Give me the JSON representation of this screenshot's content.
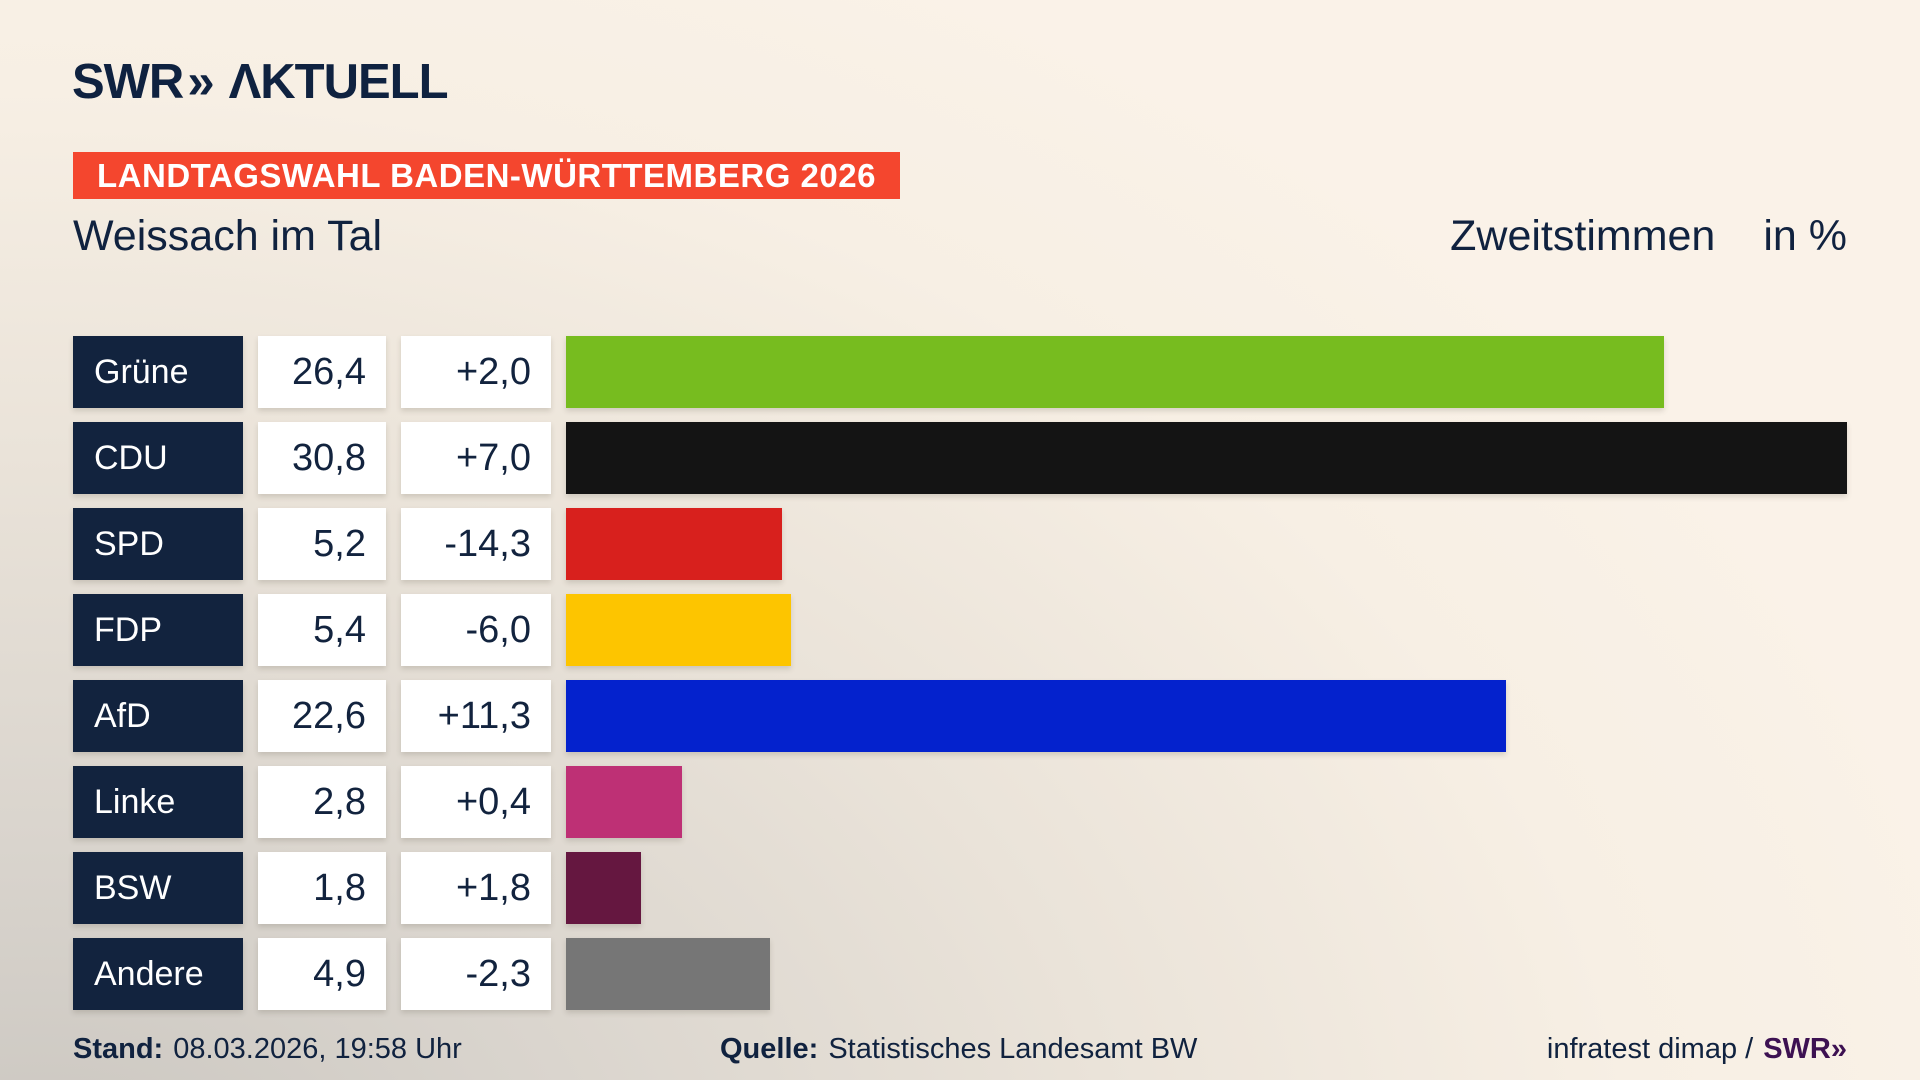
{
  "brand": {
    "name": "SWR AKTUELL",
    "swr": "SWR",
    "chevrons": "»",
    "aktuell": "ΛKTUELL"
  },
  "banner": {
    "text": "LANDTAGSWAHL BADEN-WÜRTTEMBERG 2026"
  },
  "header": {
    "municipality": "Weissach im Tal",
    "measure": "Zweitstimmen",
    "unit": "in %"
  },
  "chart_data": {
    "type": "bar",
    "orientation": "horizontal",
    "title": "Zweitstimmen in %",
    "subtitle": "Weissach im Tal",
    "categories": [
      "Grüne",
      "CDU",
      "SPD",
      "FDP",
      "AfD",
      "Linke",
      "BSW",
      "Andere"
    ],
    "values": [
      26.4,
      30.8,
      5.2,
      5.4,
      22.6,
      2.8,
      1.8,
      4.9
    ],
    "changes": [
      2.0,
      7.0,
      -14.3,
      -6.0,
      11.3,
      0.4,
      1.8,
      -2.3
    ],
    "value_labels": [
      "26,4",
      "30,8",
      "5,2",
      "5,4",
      "22,6",
      "2,8",
      "1,8",
      "4,9"
    ],
    "change_labels": [
      "+2,0",
      "+7,0",
      "-14,3",
      "-6,0",
      "+11,3",
      "+0,4",
      "+1,8",
      "-2,3"
    ],
    "bar_colors": [
      "#77bc1f",
      "#141414",
      "#d8201d",
      "#fdc500",
      "#0422cd",
      "#be3075",
      "#651740",
      "#767676"
    ],
    "xlim": [
      0,
      30.8
    ],
    "unit": "%",
    "grid": false,
    "legend": false
  },
  "colors": {
    "navy": "#12233e",
    "banner_red": "#f4462e",
    "cell_white": "#ffffff",
    "credit_purple": "#3d1152",
    "bg_top_right": "#faf2e8",
    "bg_bottom_left": "#c9c5bf"
  },
  "footer": {
    "stand_label": "Stand:",
    "stand_value": "08.03.2026, 19:58 Uhr",
    "source_label": "Quelle:",
    "source_value": "Statistisches Landesamt BW",
    "credit_text": "infratest dimap /",
    "credit_brand": "SWR»"
  }
}
